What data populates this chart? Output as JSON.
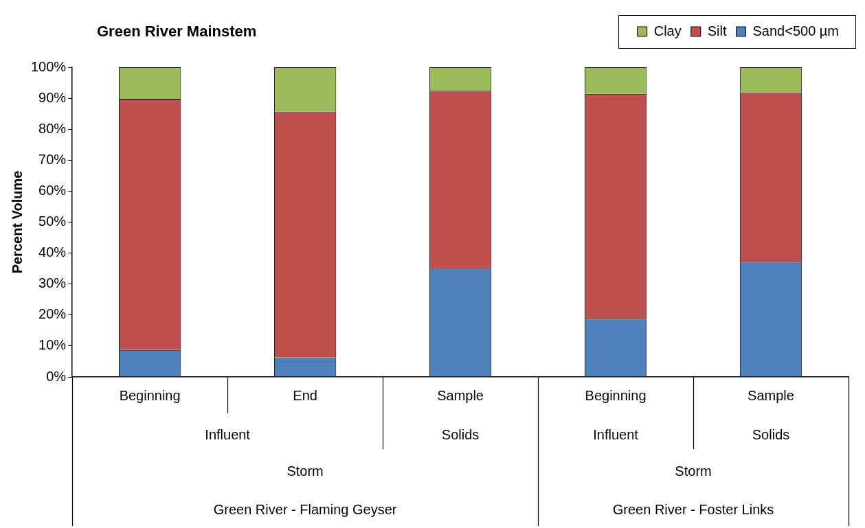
{
  "chart_data": {
    "type": "bar",
    "title": "Green River Mainstem",
    "ylabel": "Percent Volume",
    "stacked": true,
    "grid": false,
    "legend": "top right",
    "categories": [
      "Beginning",
      "End",
      "Sample",
      "Beginning",
      "Sample"
    ],
    "series": [
      {
        "name": "Sand<500 µm",
        "color": "#4f81bd",
        "values": [
          8.7,
          6.3,
          35.1,
          18.8,
          37.2
        ]
      },
      {
        "name": "Silt",
        "color": "#c0504d",
        "values": [
          81.1,
          79.4,
          57.3,
          72.6,
          54.7
        ]
      },
      {
        "name": "Clay",
        "color": "#9bbb59",
        "values": [
          10.2,
          14.3,
          7.6,
          8.6,
          8.1
        ]
      }
    ],
    "ylim": [
      0,
      100
    ],
    "yticks": [
      {
        "value": 0,
        "label": "0%"
      },
      {
        "value": 10,
        "label": "10%"
      },
      {
        "value": 20,
        "label": "20%"
      },
      {
        "value": 30,
        "label": "30%"
      },
      {
        "value": 40,
        "label": "40%"
      },
      {
        "value": 50,
        "label": "50%"
      },
      {
        "value": 60,
        "label": "60%"
      },
      {
        "value": 70,
        "label": "70%"
      },
      {
        "value": 80,
        "label": "80%"
      },
      {
        "value": 90,
        "label": "90%"
      },
      {
        "value": 100,
        "label": "100%"
      }
    ],
    "annotations": [
      "Influent",
      "Solids",
      "Influent",
      "Solids",
      "Storm",
      "Storm",
      "Green River - Flaming Geyser",
      "Green River - Foster Links"
    ]
  }
}
